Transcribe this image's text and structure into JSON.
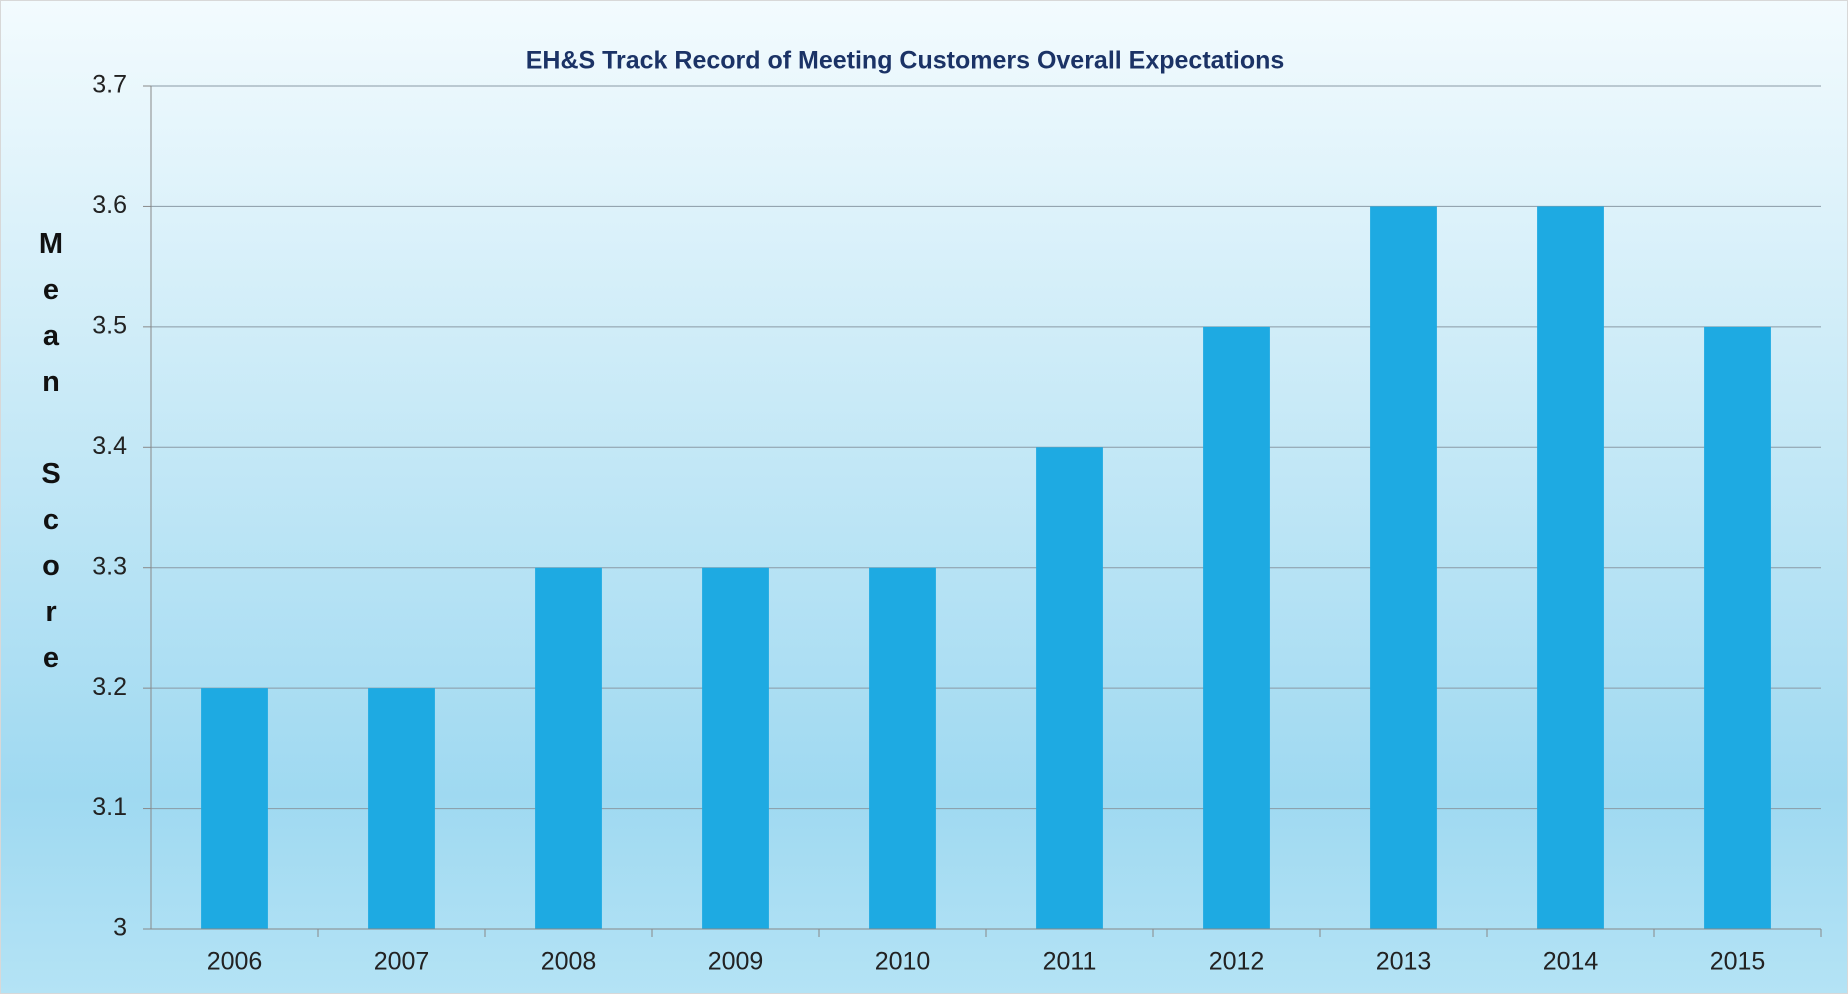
{
  "chart_data": {
    "type": "bar",
    "title": "EH&S Track Record of Meeting Customers Overall Expectations",
    "y_label": "Mean Score",
    "categories": [
      "2006",
      "2007",
      "2008",
      "2009",
      "2010",
      "2011",
      "2012",
      "2013",
      "2014",
      "2015"
    ],
    "values": [
      3.2,
      3.2,
      3.3,
      3.3,
      3.3,
      3.4,
      3.5,
      3.6,
      3.6,
      3.5
    ],
    "color": "#1eaae2",
    "ylim": [
      3,
      3.7
    ],
    "yticks": [
      3,
      3.1,
      3.2,
      3.3,
      3.4,
      3.5,
      3.6,
      3.7
    ],
    "grid": true
  }
}
